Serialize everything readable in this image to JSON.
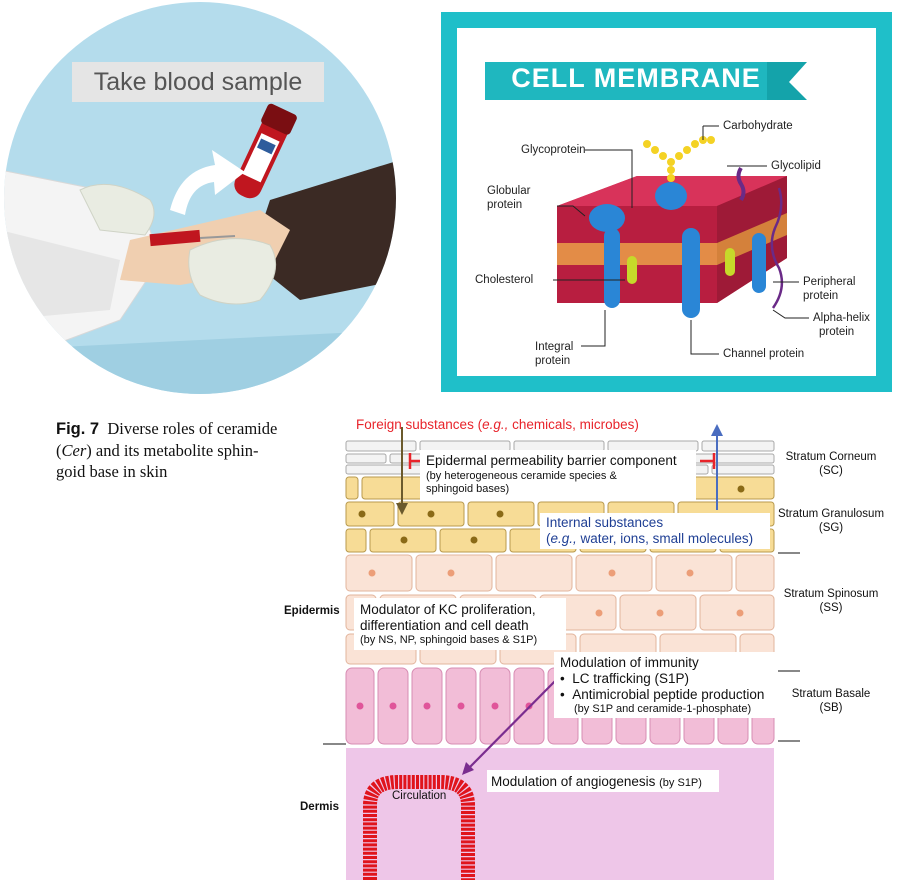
{
  "blood_panel": {
    "label": "Take blood sample"
  },
  "cell_membrane": {
    "title": "CELL MEMBRANE",
    "labels": {
      "glycoprotein": "Glycoprotein",
      "carbohydrate": "Carbohydrate",
      "glycolipid": "Glycolipid",
      "globular_protein_1": "Globular",
      "globular_protein_2": "protein",
      "cholesterol": "Cholesterol",
      "peripheral_protein_1": "Peripheral",
      "peripheral_protein_2": "protein",
      "alpha_helix_1": "Alpha-helix",
      "alpha_helix_2": "protein",
      "integral_protein_1": "Integral",
      "integral_protein_2": "protein",
      "channel_protein": "Channel protein"
    }
  },
  "caption": {
    "fig": "Fig. 7",
    "line1": "Diverse roles of ceramide",
    "line2a": "(",
    "line2b": "Cer",
    "line2c": ") and its metabolite sphin-",
    "line3": "goid base in skin"
  },
  "skin": {
    "foreign": {
      "prefix": "Foreign substances (",
      "eg": "e.g.,",
      "suffix": " chemicals, microbes)"
    },
    "barrier": {
      "title": "Epidermal permeability barrier component",
      "sub1": "(by heterogeneous ceramide species &",
      "sub2": "sphingoid bases)"
    },
    "internal": {
      "title": "Internal substances",
      "line2_prefix": "(",
      "eg": "e.g.,",
      "line2_suffix": " water, ions, small molecules)"
    },
    "kc": {
      "line1": "Modulator of KC proliferation,",
      "line2": "differentiation and cell death",
      "line3": "(by NS, NP, sphingoid bases & S1P)"
    },
    "immunity": {
      "title": "Modulation of immunity",
      "item1": "LC trafficking (S1P)",
      "item2": "Antimicrobial peptide production",
      "item2_sub": "(by S1P and ceramide-1-phosphate)"
    },
    "angio": {
      "title": "Modulation of angiogenesis",
      "sub": "(by S1P)"
    },
    "circulation": "Circulation",
    "epidermis": "Epidermis",
    "dermis": "Dermis",
    "layers": {
      "sc1": "Stratum Corneum",
      "sc2": "(SC)",
      "sg1": "Stratum Granulosum",
      "sg2": "(SG)",
      "ss1": "Stratum Spinosum",
      "ss2": "(SS)",
      "sb1": "Stratum Basale",
      "sb2": "(SB)"
    },
    "colors": {
      "foreign_red": "#e8242b",
      "internal_blue": "#1f3f94",
      "arrow_purple": "#7a2d8f",
      "dermis_pink": "#eec6e8",
      "circulation_red": "#e0141c"
    }
  }
}
